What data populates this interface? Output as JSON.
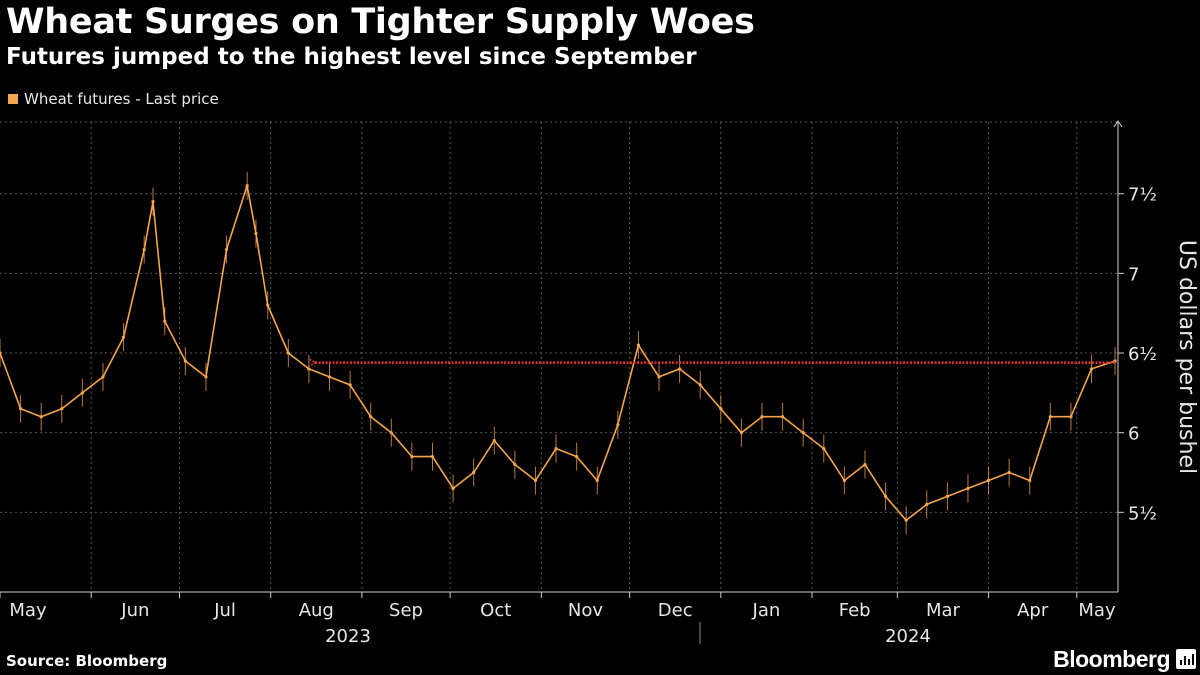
{
  "header": {
    "title": "Wheat Surges on Tighter Supply Woes",
    "subtitle": "Futures jumped to the highest level since September"
  },
  "footer": {
    "source": "Source: Bloomberg",
    "brand": "Bloomberg"
  },
  "colors": {
    "series": "#f5a54a",
    "annotation_arrow": "#e8343a",
    "grid": "#5a5a5a",
    "background": "#000000"
  },
  "chart_data": {
    "type": "line",
    "title": "Wheat Surges on Tighter Supply Woes",
    "subtitle": "Futures jumped to the highest level since September",
    "ylabel": "US dollars per bushel",
    "xlabel": "",
    "legend": {
      "position": "top-left",
      "entries": [
        "Wheat futures - Last price"
      ]
    },
    "ylim": [
      5.0,
      7.95
    ],
    "yticks": [
      5.5,
      6.0,
      6.5,
      7.0,
      7.5
    ],
    "ytick_labels": [
      "5½",
      "6",
      "6½",
      "7",
      "7½"
    ],
    "grid": true,
    "x_month_labels": [
      "May",
      "Jun",
      "Jul",
      "Aug",
      "Sep",
      "Oct",
      "Nov",
      "Dec",
      "Jan",
      "Feb",
      "Mar",
      "Apr",
      "May"
    ],
    "x_year_labels": [
      "2023",
      "2024"
    ],
    "annotation": {
      "type": "arrow",
      "from": "2024-05-14",
      "to": "2023-08-15",
      "level": 6.44
    },
    "series": [
      {
        "name": "Wheat futures - Last price",
        "x": [
          "2023-05-01",
          "2023-05-08",
          "2023-05-15",
          "2023-05-22",
          "2023-05-29",
          "2023-06-05",
          "2023-06-12",
          "2023-06-19",
          "2023-06-22",
          "2023-06-26",
          "2023-07-03",
          "2023-07-10",
          "2023-07-17",
          "2023-07-24",
          "2023-07-27",
          "2023-07-31",
          "2023-08-07",
          "2023-08-14",
          "2023-08-21",
          "2023-08-28",
          "2023-09-04",
          "2023-09-11",
          "2023-09-18",
          "2023-09-25",
          "2023-10-02",
          "2023-10-09",
          "2023-10-16",
          "2023-10-23",
          "2023-10-30",
          "2023-11-06",
          "2023-11-13",
          "2023-11-20",
          "2023-11-27",
          "2023-12-04",
          "2023-12-11",
          "2023-12-18",
          "2023-12-25",
          "2024-01-01",
          "2024-01-08",
          "2024-01-15",
          "2024-01-22",
          "2024-01-29",
          "2024-02-05",
          "2024-02-12",
          "2024-02-19",
          "2024-02-26",
          "2024-03-04",
          "2024-03-11",
          "2024-03-18",
          "2024-03-25",
          "2024-04-01",
          "2024-04-08",
          "2024-04-15",
          "2024-04-22",
          "2024-04-29",
          "2024-05-06",
          "2024-05-14"
        ],
        "values": [
          6.5,
          6.15,
          6.1,
          6.15,
          6.25,
          6.35,
          6.6,
          7.15,
          7.45,
          6.7,
          6.45,
          6.35,
          7.15,
          7.55,
          7.25,
          6.8,
          6.5,
          6.4,
          6.35,
          6.3,
          6.1,
          6.0,
          5.85,
          5.85,
          5.65,
          5.75,
          5.95,
          5.8,
          5.7,
          5.9,
          5.85,
          5.7,
          6.05,
          6.55,
          6.35,
          6.4,
          6.3,
          6.15,
          6.0,
          6.1,
          6.1,
          6.0,
          5.9,
          5.7,
          5.8,
          5.6,
          5.45,
          5.55,
          5.6,
          5.65,
          5.7,
          5.75,
          5.7,
          6.1,
          6.1,
          6.4,
          6.45
        ]
      }
    ]
  }
}
